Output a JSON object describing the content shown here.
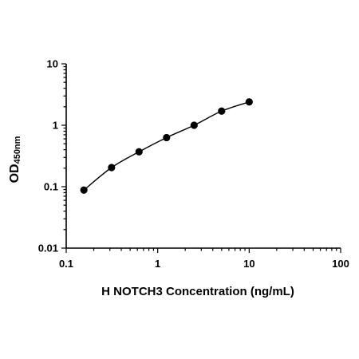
{
  "chart_data": {
    "type": "scatter",
    "title": "",
    "xlabel": "H NOTCH3 Concentration (ng/mL)",
    "ylabel": {
      "main": "OD",
      "sub": "450nm"
    },
    "x_scale": "log",
    "y_scale": "log",
    "xlim": [
      0.1,
      100
    ],
    "ylim": [
      0.01,
      10
    ],
    "x_tick_labels": [
      "0.1",
      "1",
      "10",
      "100"
    ],
    "y_tick_labels": [
      "0.01",
      "0.1",
      "1",
      "10"
    ],
    "grid": false,
    "legend": "none",
    "series": [
      {
        "x": [
          0.156,
          0.313,
          0.625,
          1.25,
          2.5,
          5,
          10
        ],
        "y": [
          0.088,
          0.205,
          0.37,
          0.63,
          1.0,
          1.7,
          2.4
        ],
        "markers": "filled-circle",
        "fit_line": true
      }
    ],
    "colors": {
      "axis": "#000000",
      "marker": "#000000",
      "line": "#000000"
    }
  }
}
